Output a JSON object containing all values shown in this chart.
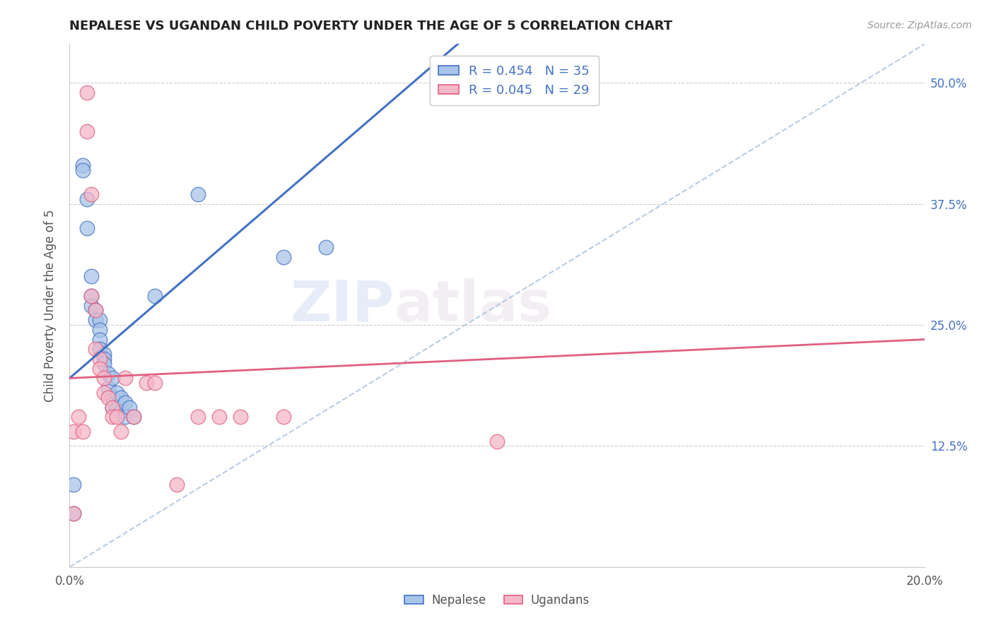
{
  "title": "NEPALESE VS UGANDAN CHILD POVERTY UNDER THE AGE OF 5 CORRELATION CHART",
  "source": "Source: ZipAtlas.com",
  "ylabel": "Child Poverty Under the Age of 5",
  "xlim": [
    0.0,
    0.2
  ],
  "ylim": [
    0.0,
    0.54
  ],
  "yticks": [
    0.0,
    0.125,
    0.25,
    0.375,
    0.5
  ],
  "ytick_labels": [
    "",
    "12.5%",
    "25.0%",
    "37.5%",
    "50.0%"
  ],
  "xticks": [
    0.0,
    0.04,
    0.08,
    0.12,
    0.16,
    0.2
  ],
  "xtick_labels": [
    "0.0%",
    "",
    "",
    "",
    "",
    "20.0%"
  ],
  "legend_r1": "R = 0.454   N = 35",
  "legend_r2": "R = 0.045   N = 29",
  "nepalese_color": "#a8c4e8",
  "ugandan_color": "#f4b8c8",
  "nepalese_edge_color": "#4472c4",
  "ugandan_edge_color": "#e06080",
  "nepalese_line_color": "#4472c4",
  "ugandan_line_color": "#e06080",
  "diagonal_color": "#b8cce4",
  "watermark_color": "#d0e0f0",
  "nepalese_x": [
    0.001,
    0.003,
    0.003,
    0.004,
    0.004,
    0.005,
    0.005,
    0.005,
    0.006,
    0.006,
    0.007,
    0.007,
    0.007,
    0.007,
    0.008,
    0.008,
    0.008,
    0.009,
    0.009,
    0.01,
    0.01,
    0.01,
    0.011,
    0.011,
    0.012,
    0.012,
    0.013,
    0.013,
    0.014,
    0.015,
    0.02,
    0.03,
    0.05,
    0.06,
    0.001
  ],
  "nepalese_y": [
    0.085,
    0.415,
    0.41,
    0.38,
    0.35,
    0.3,
    0.28,
    0.27,
    0.265,
    0.255,
    0.255,
    0.245,
    0.235,
    0.225,
    0.22,
    0.215,
    0.21,
    0.2,
    0.185,
    0.195,
    0.175,
    0.165,
    0.18,
    0.165,
    0.175,
    0.16,
    0.17,
    0.155,
    0.165,
    0.155,
    0.28,
    0.385,
    0.32,
    0.33,
    0.055
  ],
  "ugandan_x": [
    0.001,
    0.002,
    0.003,
    0.004,
    0.004,
    0.005,
    0.005,
    0.006,
    0.006,
    0.007,
    0.007,
    0.008,
    0.008,
    0.009,
    0.01,
    0.01,
    0.011,
    0.012,
    0.013,
    0.015,
    0.018,
    0.02,
    0.025,
    0.03,
    0.035,
    0.04,
    0.05,
    0.1,
    0.001
  ],
  "ugandan_y": [
    0.14,
    0.155,
    0.14,
    0.49,
    0.45,
    0.385,
    0.28,
    0.265,
    0.225,
    0.215,
    0.205,
    0.195,
    0.18,
    0.175,
    0.165,
    0.155,
    0.155,
    0.14,
    0.195,
    0.155,
    0.19,
    0.19,
    0.085,
    0.155,
    0.155,
    0.155,
    0.155,
    0.13,
    0.055
  ],
  "nepalese_line_x0": 0.0,
  "nepalese_line_y0": 0.195,
  "nepalese_line_x1": 0.05,
  "nepalese_line_y1": 0.385,
  "ugandan_line_x0": 0.0,
  "ugandan_line_y0": 0.195,
  "ugandan_line_x1": 0.2,
  "ugandan_line_y1": 0.235
}
